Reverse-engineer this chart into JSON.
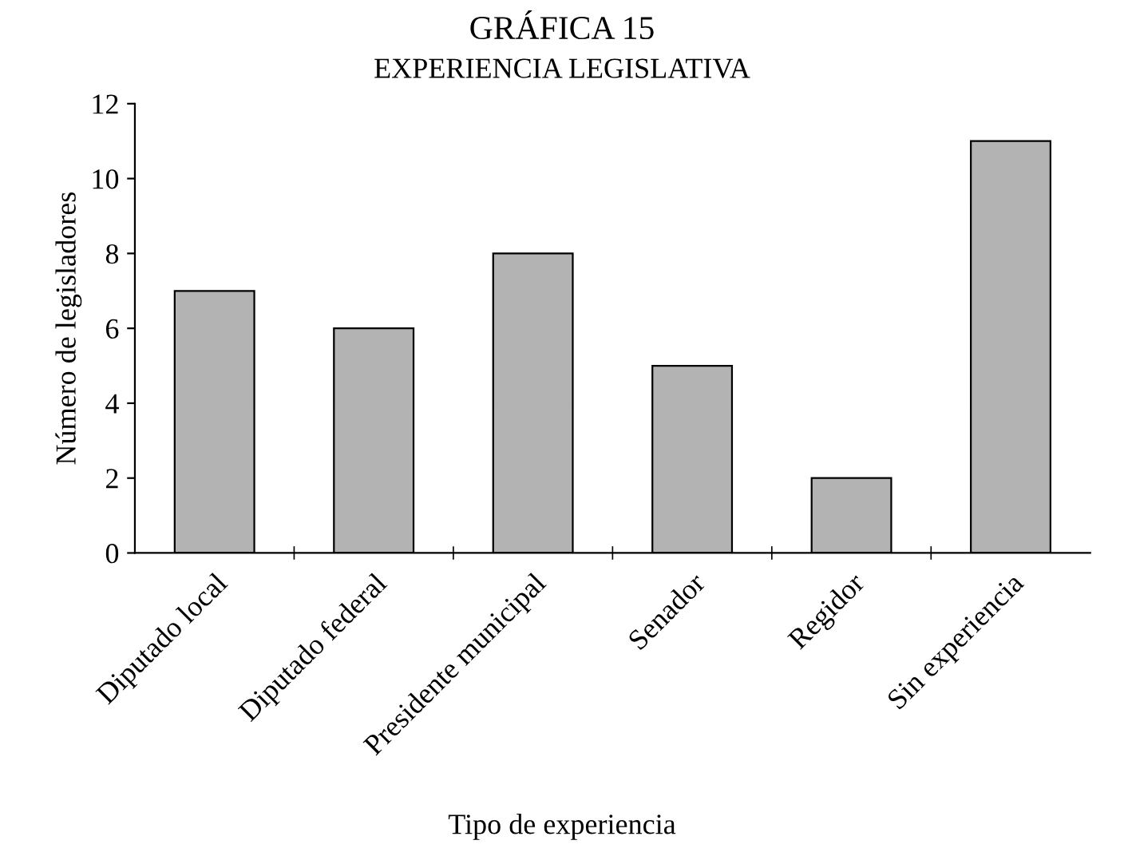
{
  "chart_data": {
    "type": "bar",
    "title": "GRÁFICA 15",
    "subtitle": "EXPERIENCIA LEGISLATIVA",
    "xlabel": "Tipo de experiencia",
    "ylabel": "Número de legisladores",
    "categories": [
      "Diputado local",
      "Diputado federal",
      "Presidente municipal",
      "Senador",
      "Regidor",
      "Sin experiencia"
    ],
    "values": [
      7,
      6,
      8,
      5,
      2,
      11
    ],
    "color": "#b3b3b3",
    "ylim": [
      0,
      12
    ],
    "yticks": [
      0,
      2,
      4,
      6,
      8,
      10,
      12
    ],
    "grid": false,
    "legend": false
  }
}
